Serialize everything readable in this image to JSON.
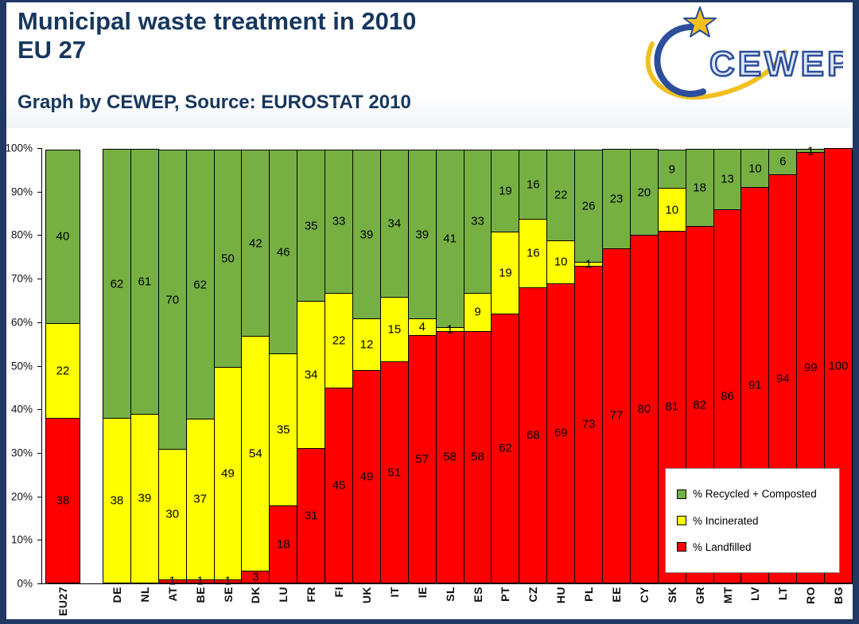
{
  "header": {
    "title_line1": "Municipal waste treatment in 2010",
    "title_line2": "EU 27",
    "subtitle": "Graph by CEWEP, Source: EUROSTAT 2010",
    "logo_text": "CEWEP"
  },
  "chart_data": {
    "type": "bar",
    "stacked": true,
    "title": "Municipal waste treatment in 2010 EU 27",
    "categories": [
      "EU27",
      "DE",
      "NL",
      "AT",
      "BE",
      "SE",
      "DK",
      "LU",
      "FR",
      "FI",
      "UK",
      "IT",
      "IE",
      "SL",
      "ES",
      "PT",
      "CZ",
      "HU",
      "PL",
      "EE",
      "CY",
      "SK",
      "GR",
      "MT",
      "LV",
      "LT",
      "RO",
      "BG"
    ],
    "series": [
      {
        "name": "% Landfilled",
        "color": "#FF0000",
        "values": [
          38,
          0,
          0,
          1,
          1,
          1,
          3,
          18,
          31,
          45,
          49,
          51,
          57,
          58,
          58,
          62,
          68,
          69,
          73,
          77,
          80,
          81,
          82,
          86,
          91,
          94,
          99,
          100
        ]
      },
      {
        "name": "% Incinerated",
        "color": "#FFFF00",
        "values": [
          22,
          38,
          39,
          30,
          37,
          49,
          54,
          35,
          34,
          22,
          12,
          15,
          4,
          1,
          9,
          19,
          16,
          10,
          1,
          0,
          0,
          10,
          0,
          0,
          0,
          0,
          0,
          0
        ]
      },
      {
        "name": "% Recycled + Composted",
        "color": "#76B043",
        "values": [
          40,
          62,
          61,
          70,
          62,
          50,
          42,
          46,
          35,
          33,
          39,
          34,
          39,
          41,
          33,
          19,
          16,
          22,
          26,
          23,
          20,
          9,
          18,
          13,
          10,
          6,
          1,
          0
        ]
      }
    ],
    "y_ticks": [
      "0%",
      "10%",
      "20%",
      "30%",
      "40%",
      "50%",
      "60%",
      "70%",
      "80%",
      "90%",
      "100%"
    ],
    "ylim": [
      0,
      100
    ],
    "grid": false,
    "legend_position": "bottom-right",
    "legend": [
      "% Recycled + Composted",
      "% Incinerated",
      "% Landfilled"
    ]
  }
}
